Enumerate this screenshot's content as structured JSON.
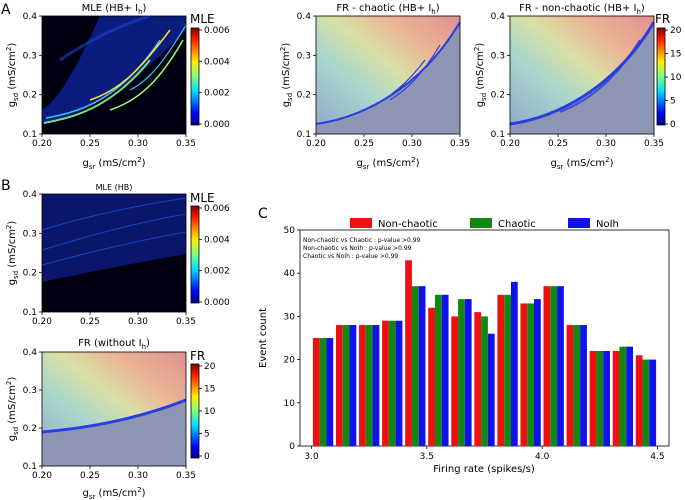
{
  "panels": {
    "A": "A",
    "B": "B",
    "C": "C"
  },
  "heatmaps": {
    "a_mle": {
      "title": "MLE  (HB+ I",
      "title_sub": "h",
      "title_end": ")",
      "xlabel": "g",
      "xlabel_sub": "sr",
      "xlabel_unit": " (mS/cm",
      "xlabel_sup": "2",
      "xlabel_end": ")",
      "ylabel": "g",
      "ylabel_sub": "sd",
      "ylabel_unit": " (mS/cm",
      "ylabel_sup": "2",
      "ylabel_end": ")",
      "x_ticks": [
        "0.20",
        "0.25",
        "0.30",
        "0.35"
      ],
      "y_ticks": [
        "0.1",
        "0.2",
        "0.3",
        "0.4"
      ]
    },
    "a_fr_chaotic": {
      "title": "FR - chaotic (HB+ I",
      "title_sub": "h",
      "title_end": ")",
      "x_ticks": [
        "0.20",
        "0.25",
        "0.30",
        "0.35"
      ],
      "y_ticks": [
        "0.1",
        "0.2",
        "0.3",
        "0.4"
      ]
    },
    "a_fr_nonchaotic": {
      "title": "FR - non-chaotic (HB+ I",
      "title_sub": "h",
      "title_end": ")",
      "x_ticks": [
        "0.20",
        "0.25",
        "0.30",
        "0.35"
      ],
      "y_ticks": [
        "0.1",
        "0.2",
        "0.3",
        "0.4"
      ]
    },
    "b_mle": {
      "title": "MLE (HB)",
      "x_ticks": [
        "0.20",
        "0.25",
        "0.30",
        "0.35"
      ],
      "y_ticks": [
        "0.1",
        "0.2",
        "0.3",
        "0.4"
      ]
    },
    "b_fr": {
      "title": "FR (without  I",
      "title_sub": "h",
      "title_end": ")",
      "x_ticks": [
        "0.20",
        "0.25",
        "0.30",
        "0.35"
      ],
      "y_ticks": [
        "0.1",
        "0.2",
        "0.3",
        "0.4"
      ]
    }
  },
  "colorbars": {
    "mle_label": "MLE",
    "mle_ticks": [
      "0.006",
      "0.004",
      "0.002",
      "0.000"
    ],
    "fr_label": "FR",
    "fr_ticks": [
      "20",
      "15",
      "10",
      "5",
      "0"
    ]
  },
  "colors": {
    "non_chaotic": "#ee1111",
    "chaotic": "#118811",
    "noih": "#1111ee",
    "jet_low": "#00007f",
    "jet_high": "#7f0000"
  },
  "chart_data": {
    "type": "bar",
    "title": "",
    "xlabel": "Firing rate (spikes/s)",
    "ylabel": "Event count",
    "xlim": [
      2.95,
      4.55
    ],
    "ylim": [
      0,
      50
    ],
    "x_ticks": [
      "3.0",
      "3.5",
      "4.0",
      "4.5"
    ],
    "y_ticks": [
      "0",
      "10",
      "20",
      "30",
      "40",
      "50"
    ],
    "categories": [
      3.05,
      3.15,
      3.25,
      3.35,
      3.45,
      3.55,
      3.65,
      3.75,
      3.85,
      3.95,
      4.05,
      4.15,
      4.25,
      4.35,
      4.45
    ],
    "series": [
      {
        "name": "Non-chaotic",
        "values": [
          25,
          28,
          28,
          29,
          43,
          32,
          30,
          31,
          35,
          33,
          37,
          28,
          22,
          22,
          21
        ]
      },
      {
        "name": "Chaotic",
        "values": [
          25,
          28,
          28,
          29,
          37,
          35,
          34,
          30,
          35,
          33,
          37,
          28,
          22,
          23,
          20
        ]
      },
      {
        "name": "NoIh",
        "values": [
          25,
          28,
          28,
          29,
          37,
          35,
          34,
          26,
          38,
          34,
          37,
          28,
          22,
          23,
          20
        ]
      }
    ],
    "legend": [
      "Non-chaotic",
      "Chaotic",
      "NoIh"
    ],
    "legend_position": "top-center",
    "annotations": [
      "Non-chaotic vs Chaotic : p-value >0.99",
      "Non-chaotic vs NoIh : p-value >0.99",
      "Chaotic vs NoIh : p-value >0.99"
    ]
  }
}
